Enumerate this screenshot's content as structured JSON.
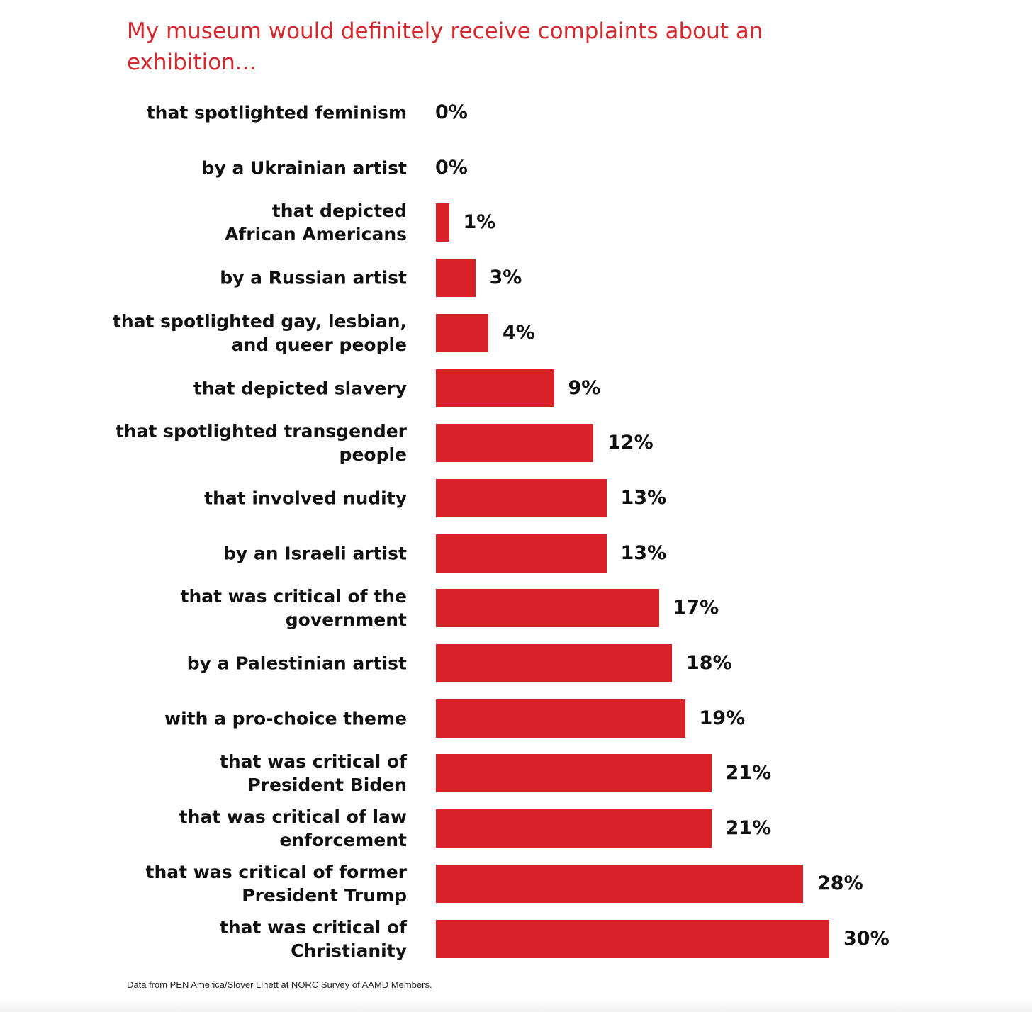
{
  "chart_data": {
    "type": "bar",
    "orientation": "horizontal",
    "title": "My museum would definitely receive complaints about an exhibition...",
    "categories": [
      "that spotlighted feminism",
      "by a Ukrainian artist",
      "that depicted\nAfrican Americans",
      "by a Russian artist",
      "that spotlighted gay, lesbian,\nand queer people",
      "that depicted slavery",
      "that spotlighted transgender\npeople",
      "that involved nudity",
      "by an Israeli artist",
      "that was critical of the\ngovernment",
      "by a Palestinian artist",
      "with a pro-choice theme",
      "that was critical of\nPresident Biden",
      "that was critical of law\nenforcement",
      "that was critical of former\nPresident Trump",
      "that was critical of Christianity"
    ],
    "values": [
      0,
      0,
      1,
      3,
      4,
      9,
      12,
      13,
      13,
      17,
      18,
      19,
      21,
      21,
      28,
      30
    ],
    "value_labels": [
      "0%",
      "0%",
      "1%",
      "3%",
      "4%",
      "9%",
      "12%",
      "13%",
      "13%",
      "17%",
      "18%",
      "19%",
      "21%",
      "21%",
      "28%",
      "30%"
    ],
    "xlabel": "",
    "ylabel": "",
    "xlim": [
      0,
      30
    ],
    "grid": false,
    "bar_color": "#d82128",
    "title_color": "#d42a2e"
  },
  "source_note": "Data from PEN America/Slover Linett at NORC Survey of AAMD Members."
}
